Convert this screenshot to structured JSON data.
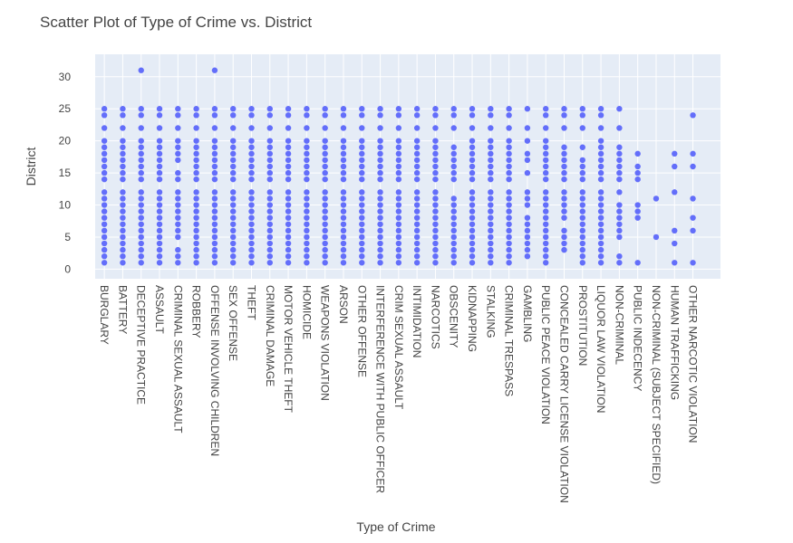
{
  "chart_data": {
    "type": "scatter",
    "title": "Scatter Plot of Type of Crime vs. District",
    "xlabel": "Type of Crime",
    "ylabel": "District",
    "ylim": [
      -1.5,
      33.5
    ],
    "yticks": [
      0,
      5,
      10,
      15,
      20,
      25,
      30
    ],
    "grid": true,
    "legend": "none",
    "colors": {
      "marker": "#636efa",
      "plot_bg": "#e5ecf6",
      "grid": "#ffffff",
      "text": "#444444"
    },
    "categories": [
      "BURGLARY",
      "BATTERY",
      "DECEPTIVE PRACTICE",
      "ASSAULT",
      "CRIMINAL SEXUAL ASSAULT",
      "ROBBERY",
      "OFFENSE INVOLVING CHILDREN",
      "SEX OFFENSE",
      "THEFT",
      "CRIMINAL DAMAGE",
      "MOTOR VEHICLE THEFT",
      "HOMICIDE",
      "WEAPONS VIOLATION",
      "ARSON",
      "OTHER OFFENSE",
      "INTERFERENCE WITH PUBLIC OFFICER",
      "CRIM SEXUAL ASSAULT",
      "INTIMIDATION",
      "NARCOTICS",
      "OBSCENITY",
      "KIDNAPPING",
      "STALKING",
      "CRIMINAL TRESPASS",
      "GAMBLING",
      "PUBLIC PEACE VIOLATION",
      "CONCEALED CARRY LICENSE VIOLATION",
      "PROSTITUTION",
      "LIQUOR LAW VIOLATION",
      "NON-CRIMINAL",
      "PUBLIC INDECENCY",
      "NON-CRIMINAL (SUBJECT SPECIFIED)",
      "HUMAN TRAFFICKING",
      "OTHER NARCOTIC VIOLATION"
    ],
    "series": [
      {
        "points": [
          [
            "BURGLARY",
            [
              1,
              2,
              3,
              4,
              5,
              6,
              7,
              8,
              9,
              10,
              11,
              12,
              14,
              15,
              16,
              17,
              18,
              19,
              20,
              22,
              24,
              25
            ]
          ],
          [
            "BATTERY",
            [
              1,
              2,
              3,
              4,
              5,
              6,
              7,
              8,
              9,
              10,
              11,
              12,
              14,
              15,
              16,
              17,
              18,
              19,
              20,
              22,
              24,
              25
            ]
          ],
          [
            "DECEPTIVE PRACTICE",
            [
              1,
              2,
              3,
              4,
              5,
              6,
              7,
              8,
              9,
              10,
              11,
              12,
              14,
              15,
              16,
              17,
              18,
              19,
              20,
              22,
              24,
              25,
              31
            ]
          ],
          [
            "ASSAULT",
            [
              1,
              2,
              3,
              4,
              5,
              6,
              7,
              8,
              9,
              10,
              11,
              12,
              14,
              15,
              16,
              17,
              18,
              19,
              20,
              22,
              24,
              25
            ]
          ],
          [
            "CRIMINAL SEXUAL ASSAULT",
            [
              1,
              2,
              3,
              5,
              6,
              7,
              8,
              9,
              10,
              11,
              12,
              14,
              15,
              17,
              18,
              19,
              20,
              22,
              24,
              25
            ]
          ],
          [
            "ROBBERY",
            [
              1,
              2,
              3,
              4,
              5,
              6,
              7,
              8,
              9,
              10,
              11,
              12,
              14,
              15,
              16,
              17,
              18,
              19,
              20,
              22,
              24,
              25
            ]
          ],
          [
            "OFFENSE INVOLVING CHILDREN",
            [
              1,
              2,
              3,
              4,
              5,
              6,
              7,
              8,
              9,
              10,
              11,
              12,
              14,
              15,
              16,
              17,
              18,
              19,
              20,
              22,
              24,
              25,
              31
            ]
          ],
          [
            "SEX OFFENSE",
            [
              1,
              2,
              3,
              4,
              5,
              6,
              7,
              8,
              9,
              10,
              11,
              12,
              14,
              15,
              16,
              17,
              18,
              19,
              20,
              22,
              24,
              25
            ]
          ],
          [
            "THEFT",
            [
              1,
              2,
              3,
              4,
              5,
              6,
              7,
              8,
              9,
              10,
              11,
              12,
              14,
              15,
              16,
              17,
              18,
              19,
              20,
              22,
              24,
              25
            ]
          ],
          [
            "CRIMINAL DAMAGE",
            [
              1,
              2,
              3,
              4,
              5,
              6,
              7,
              8,
              9,
              10,
              11,
              12,
              14,
              15,
              16,
              17,
              18,
              19,
              20,
              22,
              24,
              25
            ]
          ],
          [
            "MOTOR VEHICLE THEFT",
            [
              1,
              2,
              3,
              4,
              5,
              6,
              7,
              8,
              9,
              10,
              11,
              12,
              14,
              15,
              16,
              17,
              18,
              19,
              20,
              22,
              24,
              25
            ]
          ],
          [
            "HOMICIDE",
            [
              1,
              2,
              3,
              4,
              5,
              6,
              7,
              8,
              9,
              10,
              11,
              12,
              14,
              15,
              16,
              17,
              18,
              19,
              20,
              22,
              24,
              25
            ]
          ],
          [
            "WEAPONS VIOLATION",
            [
              1,
              2,
              3,
              4,
              5,
              6,
              7,
              8,
              9,
              10,
              11,
              12,
              14,
              15,
              16,
              17,
              18,
              19,
              20,
              22,
              24,
              25
            ]
          ],
          [
            "ARSON",
            [
              1,
              2,
              3,
              4,
              5,
              6,
              7,
              8,
              9,
              10,
              11,
              12,
              14,
              15,
              16,
              17,
              18,
              19,
              20,
              22,
              24,
              25
            ]
          ],
          [
            "OTHER OFFENSE",
            [
              1,
              2,
              3,
              4,
              5,
              6,
              7,
              8,
              9,
              10,
              11,
              12,
              14,
              15,
              16,
              17,
              18,
              19,
              20,
              22,
              24,
              25
            ]
          ],
          [
            "INTERFERENCE WITH PUBLIC OFFICER",
            [
              1,
              2,
              3,
              4,
              5,
              6,
              7,
              8,
              9,
              10,
              11,
              12,
              14,
              15,
              16,
              17,
              18,
              19,
              20,
              22,
              24,
              25
            ]
          ],
          [
            "CRIM SEXUAL ASSAULT",
            [
              1,
              2,
              3,
              4,
              5,
              6,
              7,
              8,
              9,
              10,
              11,
              12,
              14,
              15,
              16,
              17,
              18,
              19,
              20,
              22,
              24,
              25
            ]
          ],
          [
            "INTIMIDATION",
            [
              1,
              2,
              3,
              4,
              5,
              6,
              7,
              8,
              9,
              10,
              11,
              12,
              14,
              15,
              16,
              17,
              18,
              19,
              20,
              22,
              24,
              25
            ]
          ],
          [
            "NARCOTICS",
            [
              1,
              2,
              3,
              4,
              5,
              6,
              7,
              8,
              9,
              10,
              11,
              12,
              14,
              15,
              16,
              17,
              18,
              19,
              20,
              22,
              24,
              25
            ]
          ],
          [
            "OBSCENITY",
            [
              1,
              2,
              3,
              4,
              5,
              6,
              7,
              8,
              9,
              10,
              11,
              14,
              15,
              16,
              17,
              18,
              19,
              22,
              24,
              25
            ]
          ],
          [
            "KIDNAPPING",
            [
              1,
              2,
              3,
              4,
              5,
              6,
              7,
              8,
              9,
              10,
              11,
              12,
              14,
              15,
              16,
              17,
              18,
              19,
              20,
              22,
              24,
              25
            ]
          ],
          [
            "STALKING",
            [
              1,
              2,
              3,
              4,
              5,
              6,
              7,
              8,
              9,
              10,
              11,
              12,
              14,
              15,
              16,
              17,
              18,
              19,
              20,
              22,
              24,
              25
            ]
          ],
          [
            "CRIMINAL TRESPASS",
            [
              1,
              2,
              3,
              4,
              5,
              6,
              7,
              8,
              9,
              10,
              11,
              12,
              14,
              15,
              16,
              17,
              18,
              19,
              20,
              22,
              24,
              25
            ]
          ],
          [
            "GAMBLING",
            [
              2,
              3,
              4,
              5,
              6,
              7,
              8,
              10,
              11,
              12,
              15,
              17,
              18,
              20,
              22,
              25
            ]
          ],
          [
            "PUBLIC PEACE VIOLATION",
            [
              1,
              2,
              3,
              4,
              5,
              6,
              7,
              8,
              9,
              10,
              11,
              12,
              14,
              15,
              16,
              17,
              18,
              19,
              20,
              22,
              24,
              25
            ]
          ],
          [
            "CONCEALED CARRY LICENSE VIOLATION",
            [
              3,
              4,
              5,
              6,
              8,
              9,
              10,
              11,
              12,
              14,
              15,
              16,
              17,
              18,
              19,
              22,
              24,
              25
            ]
          ],
          [
            "PROSTITUTION",
            [
              1,
              2,
              3,
              4,
              5,
              6,
              7,
              8,
              9,
              10,
              11,
              12,
              14,
              15,
              16,
              17,
              19,
              22,
              24,
              25
            ]
          ],
          [
            "LIQUOR LAW VIOLATION",
            [
              1,
              2,
              3,
              4,
              5,
              6,
              7,
              8,
              9,
              10,
              11,
              12,
              14,
              15,
              16,
              17,
              18,
              19,
              20,
              22,
              24,
              25
            ]
          ],
          [
            "NON-CRIMINAL",
            [
              1,
              2,
              5,
              6,
              7,
              8,
              9,
              10,
              12,
              14,
              15,
              16,
              17,
              18,
              19,
              22,
              25
            ]
          ],
          [
            "PUBLIC INDECENCY",
            [
              1,
              8,
              9,
              10,
              14,
              15,
              16,
              18
            ]
          ],
          [
            "NON-CRIMINAL (SUBJECT SPECIFIED)",
            [
              5,
              11
            ]
          ],
          [
            "HUMAN TRAFFICKING",
            [
              1,
              4,
              6,
              12,
              16,
              18
            ]
          ],
          [
            "OTHER NARCOTIC VIOLATION",
            [
              1,
              6,
              8,
              11,
              16,
              18,
              24
            ]
          ]
        ]
      }
    ]
  }
}
